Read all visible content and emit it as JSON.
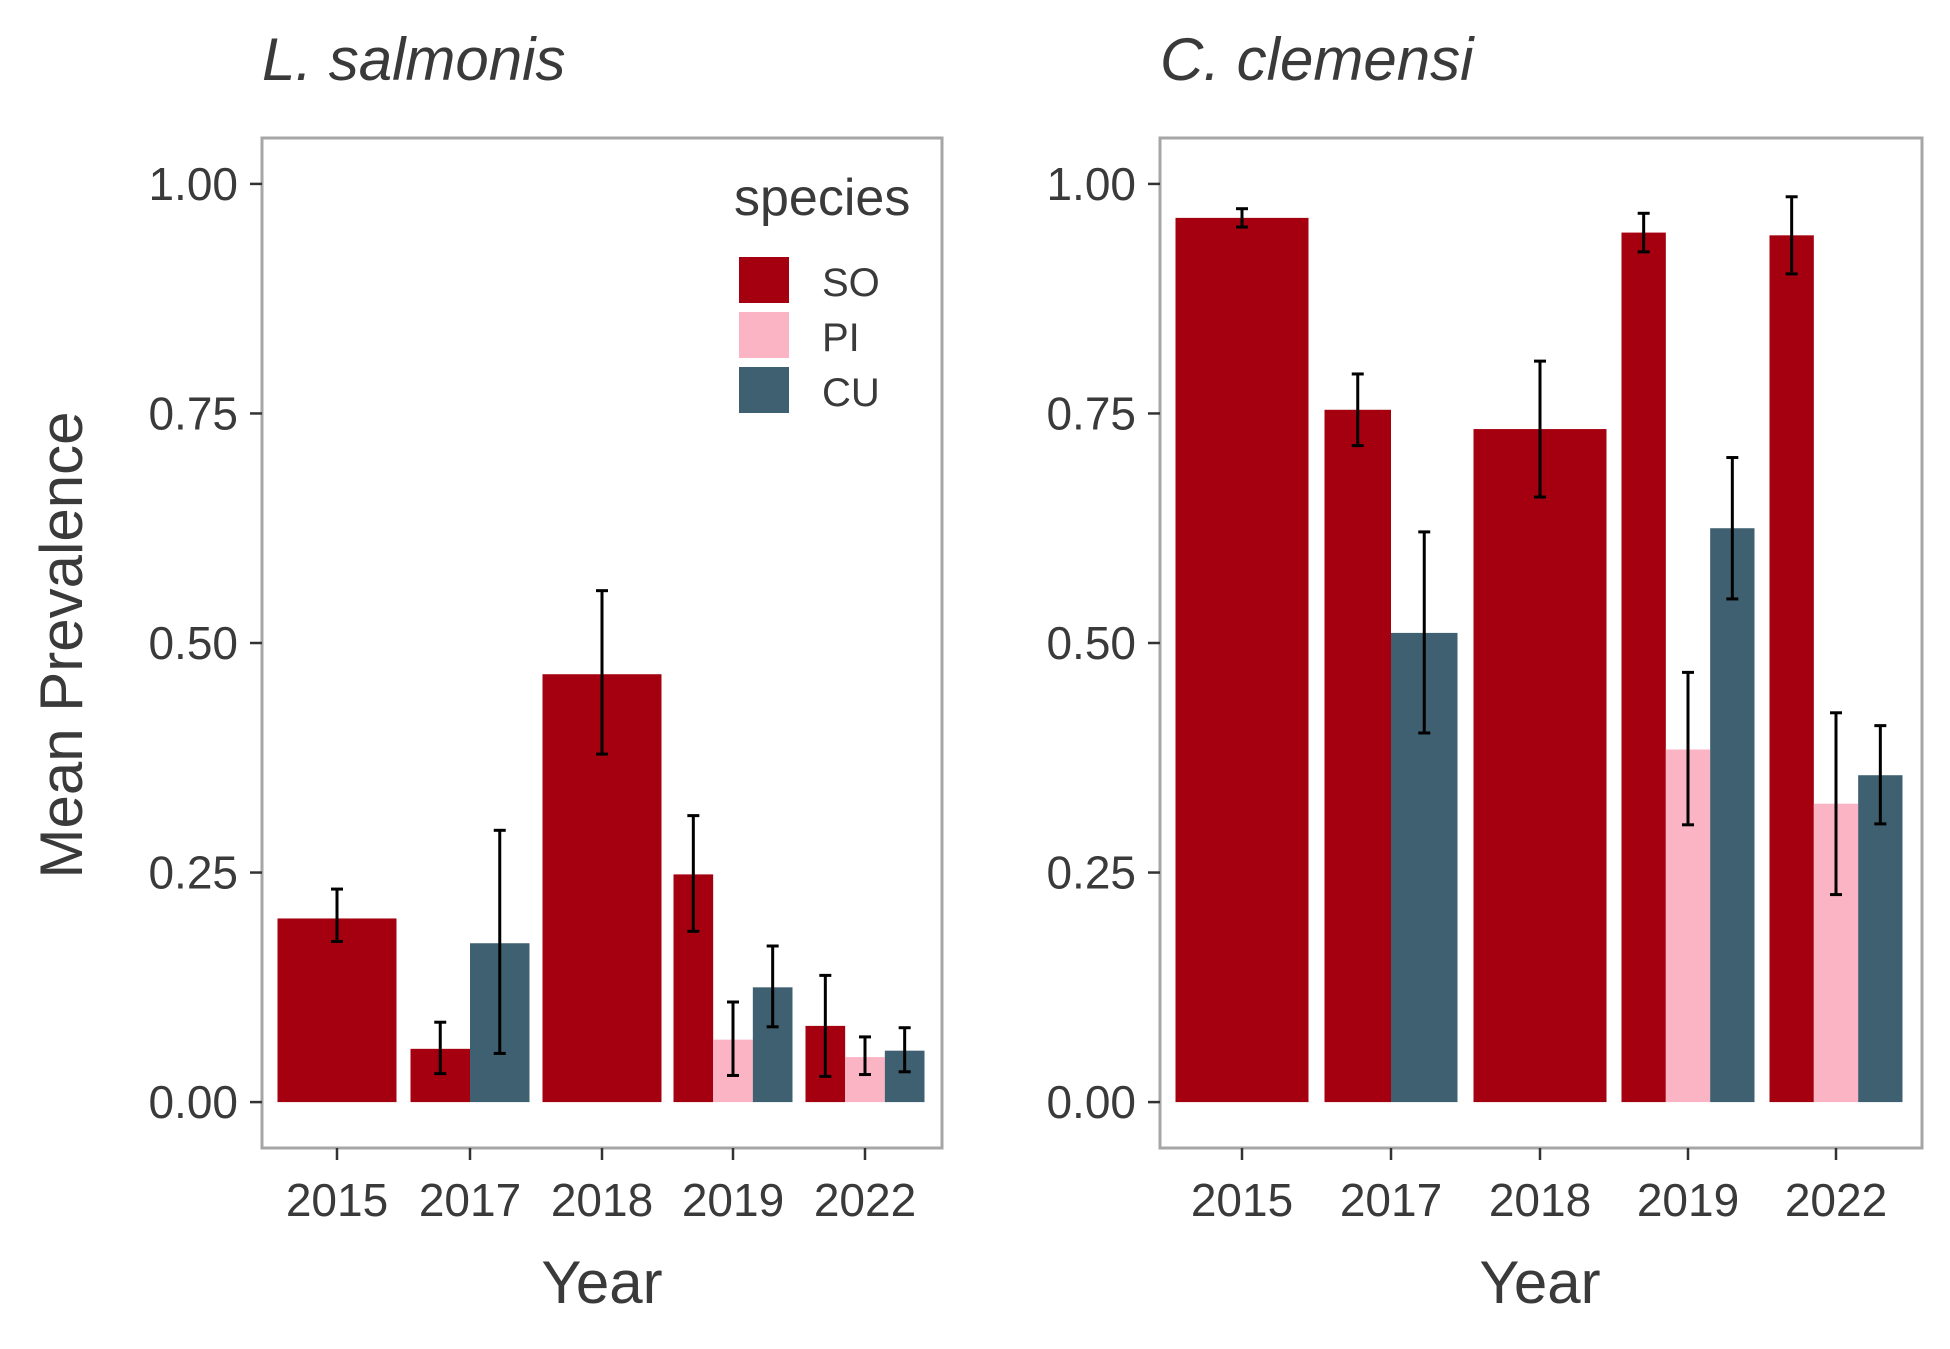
{
  "chart_data": [
    {
      "type": "bar",
      "panel": "left",
      "title": "L. salmonis",
      "xlabel": "Year",
      "ylabel": "Mean Prevalence",
      "ylim": [
        -0.05,
        1.05
      ],
      "yticks": [
        "0.00",
        "0.25",
        "0.50",
        "0.75",
        "1.00"
      ],
      "categories": [
        "2015",
        "2017",
        "2018",
        "2019",
        "2022"
      ],
      "groups": [
        {
          "category": "2015",
          "bars": [
            {
              "series": "SO",
              "value": 0.2,
              "lo": 0.175,
              "hi": 0.232
            }
          ]
        },
        {
          "category": "2017",
          "bars": [
            {
              "series": "SO",
              "value": 0.058,
              "lo": 0.031,
              "hi": 0.087
            },
            {
              "series": "CU",
              "value": 0.173,
              "lo": 0.053,
              "hi": 0.296
            }
          ]
        },
        {
          "category": "2018",
          "bars": [
            {
              "series": "SO",
              "value": 0.466,
              "lo": 0.379,
              "hi": 0.557
            }
          ]
        },
        {
          "category": "2019",
          "bars": [
            {
              "series": "SO",
              "value": 0.248,
              "lo": 0.186,
              "hi": 0.312
            },
            {
              "series": "PI",
              "value": 0.068,
              "lo": 0.029,
              "hi": 0.109
            },
            {
              "series": "CU",
              "value": 0.125,
              "lo": 0.082,
              "hi": 0.17
            }
          ]
        },
        {
          "category": "2022",
          "bars": [
            {
              "series": "SO",
              "value": 0.083,
              "lo": 0.028,
              "hi": 0.138
            },
            {
              "series": "PI",
              "value": 0.049,
              "lo": 0.03,
              "hi": 0.071
            },
            {
              "series": "CU",
              "value": 0.056,
              "lo": 0.033,
              "hi": 0.081
            }
          ]
        }
      ],
      "legend": {
        "title": "species",
        "placement": "top-right",
        "items": [
          {
            "label": "SO",
            "color": "#a50010"
          },
          {
            "label": "PI",
            "color": "#fbb4c4"
          },
          {
            "label": "CU",
            "color": "#3f6070"
          }
        ]
      }
    },
    {
      "type": "bar",
      "panel": "right",
      "title": "C. clemensi",
      "xlabel": "Year",
      "ylim": [
        -0.05,
        1.05
      ],
      "yticks": [
        "0.00",
        "0.25",
        "0.50",
        "0.75",
        "1.00"
      ],
      "categories": [
        "2015",
        "2017",
        "2018",
        "2019",
        "2022"
      ],
      "groups": [
        {
          "category": "2015",
          "bars": [
            {
              "series": "SO",
              "value": 0.963,
              "lo": 0.953,
              "hi": 0.973
            }
          ]
        },
        {
          "category": "2017",
          "bars": [
            {
              "series": "SO",
              "value": 0.754,
              "lo": 0.715,
              "hi": 0.793
            },
            {
              "series": "CU",
              "value": 0.511,
              "lo": 0.402,
              "hi": 0.621
            }
          ]
        },
        {
          "category": "2018",
          "bars": [
            {
              "series": "SO",
              "value": 0.733,
              "lo": 0.659,
              "hi": 0.807
            }
          ]
        },
        {
          "category": "2019",
          "bars": [
            {
              "series": "SO",
              "value": 0.947,
              "lo": 0.926,
              "hi": 0.968
            },
            {
              "series": "PI",
              "value": 0.384,
              "lo": 0.302,
              "hi": 0.468
            },
            {
              "series": "CU",
              "value": 0.625,
              "lo": 0.548,
              "hi": 0.702
            }
          ]
        },
        {
          "category": "2022",
          "bars": [
            {
              "series": "SO",
              "value": 0.944,
              "lo": 0.902,
              "hi": 0.986
            },
            {
              "series": "PI",
              "value": 0.325,
              "lo": 0.226,
              "hi": 0.424
            },
            {
              "series": "CU",
              "value": 0.356,
              "lo": 0.303,
              "hi": 0.41
            }
          ]
        }
      ]
    }
  ],
  "colors": {
    "SO": "#a50010",
    "PI": "#fbb4c4",
    "CU": "#3f6070",
    "errorbar": "#000000",
    "border": "#a6a6a6",
    "text": "#3a3a3a"
  }
}
